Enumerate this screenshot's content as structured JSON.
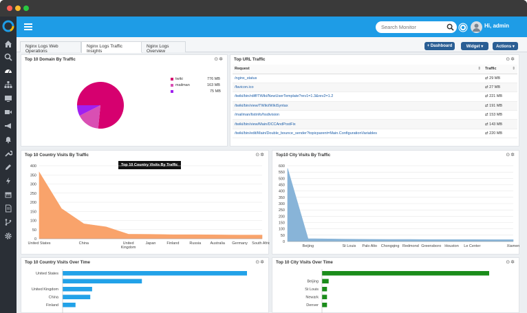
{
  "header": {
    "search_placeholder": "Search Monitor",
    "user_greeting": "Hi, admin"
  },
  "tabs": [
    {
      "label": "Nginx Logs Web Operations"
    },
    {
      "label": "Nginx Logs Traffic Insights"
    },
    {
      "label": "Nginx Logs Overview"
    }
  ],
  "toolbar": {
    "dashboard_label": "+ Dashboard",
    "widget_label": "Widget ▾",
    "actions_label": "Actions ▾"
  },
  "panels": {
    "domain": {
      "title": "Top 10 Domain By Traffic",
      "legend": [
        {
          "name": "twiki",
          "value": "776 MB",
          "color": "#d6006f"
        },
        {
          "name": "mailman",
          "value": "163 MB",
          "color": "#d94fb3"
        },
        {
          "name": "",
          "value": "75 MB",
          "color": "#a020f0"
        }
      ]
    },
    "url": {
      "title": "Top URL Traffic",
      "col_request": "Request",
      "col_traffic": "Traffic",
      "rows": [
        {
          "request": "/nginx_status",
          "traffic": "29 MB"
        },
        {
          "request": "/favicon.ico",
          "traffic": "27 MB"
        },
        {
          "request": "/twiki/bin/rdiff/TWiki/NewUserTemplate?rev1=1.3&rev2=1.2",
          "traffic": "221 MB"
        },
        {
          "request": "/twiki/bin/view/TWiki/WikiSyntax",
          "traffic": "191 MB"
        },
        {
          "request": "/mailman/listinfo/hsdivision",
          "traffic": "153 MB"
        },
        {
          "request": "/twiki/bin/view/Main/DCCAndPostFix",
          "traffic": "143 MB"
        },
        {
          "request": "/twiki/bin/edit/Main/Double_bounce_sender?topicparent=Main.ConfigurationVariables",
          "traffic": "220 MB"
        }
      ]
    },
    "country": {
      "title": "Top 10 Country Visits By Traffic",
      "tooltip": "Top 10 Country Visits By Traffic"
    },
    "city": {
      "title": "Top10 City Visits By Traffic"
    },
    "country_time": {
      "title": "Top 10 Country Visits Over Time",
      "bars": [
        {
          "label": "United States",
          "value": 100
        },
        {
          "label": "",
          "value": 43
        },
        {
          "label": "United Kingdom",
          "value": 16
        },
        {
          "label": "China",
          "value": 15
        },
        {
          "label": "Finland",
          "value": 7
        }
      ]
    },
    "city_time": {
      "title": "Top 10 City Visits Over Time",
      "bars": [
        {
          "label": "",
          "value": 100
        },
        {
          "label": "Beijing",
          "value": 4
        },
        {
          "label": "St Louis",
          "value": 3
        },
        {
          "label": "Newark",
          "value": 3
        },
        {
          "label": "Denver",
          "value": 3
        }
      ]
    }
  },
  "chart_data": [
    {
      "type": "pie",
      "labels": [
        "twiki",
        "mailman",
        ""
      ],
      "values": [
        776,
        163,
        75
      ]
    },
    {
      "type": "area",
      "categories": [
        "United States",
        "",
        "China",
        "",
        "United Kingdom",
        "Japan",
        "Finland",
        "Russia",
        "Australia",
        "Germany",
        "South Africa"
      ],
      "values": [
        365,
        165,
        82,
        65,
        25,
        24,
        22,
        22,
        21,
        20,
        20
      ],
      "ylim": [
        0,
        400
      ],
      "yticks": [
        0,
        50,
        100,
        150,
        200,
        250,
        300,
        350,
        400
      ],
      "color": "#f9a36b"
    },
    {
      "type": "area",
      "categories": [
        "",
        "Beijing",
        "",
        "St Louis",
        "Palo Alto",
        "Chongqing",
        "Redmond",
        "Greensboro",
        "Houston",
        "Le Center",
        "",
        "Xiamen"
      ],
      "values": [
        580,
        22,
        20,
        18,
        17,
        16,
        16,
        15,
        15,
        15,
        14,
        14
      ],
      "ylim": [
        0,
        600
      ],
      "yticks": [
        0,
        50,
        100,
        150,
        200,
        250,
        300,
        350,
        400,
        450,
        500,
        550,
        600
      ],
      "color": "#88b4d8"
    }
  ]
}
